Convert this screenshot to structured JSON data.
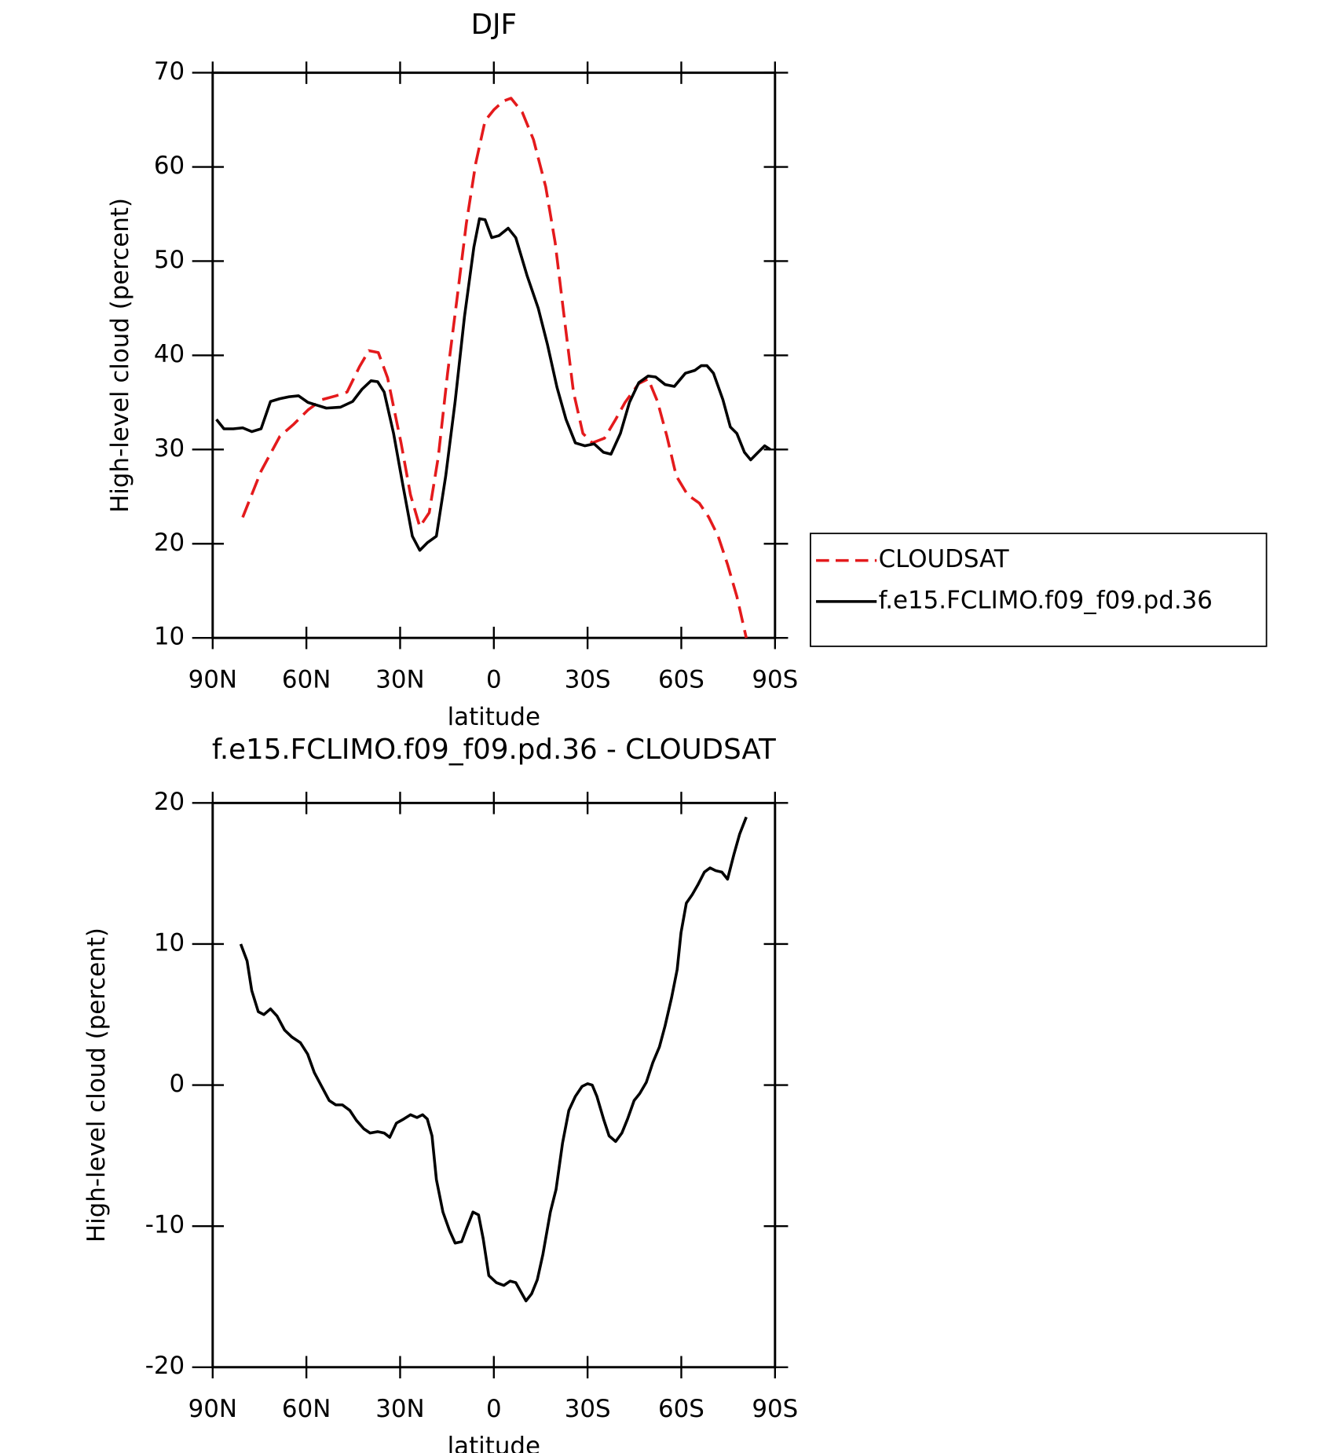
{
  "chart_data": [
    {
      "type": "line",
      "title": "DJF",
      "xlabel": "latitude",
      "ylabel": "High-level cloud (percent)",
      "xlim": [
        90,
        -90
      ],
      "xticks": [
        {
          "value": 90,
          "label": "90N"
        },
        {
          "value": 60,
          "label": "60N"
        },
        {
          "value": 30,
          "label": "30N"
        },
        0,
        {
          "value": -30,
          "label": "30S"
        },
        {
          "value": -60,
          "label": "60S"
        },
        {
          "value": -90,
          "label": "90S"
        }
      ],
      "ylim": [
        10,
        70
      ],
      "yticks": [
        10,
        20,
        30,
        40,
        50,
        60,
        70
      ],
      "legend": "right",
      "series": [
        {
          "name": "CLOUDSAT",
          "color": "#e41a1c",
          "linestyle": "dashed",
          "x": [
            80.4,
            74.5,
            68.5,
            64,
            59.5,
            55,
            50.5,
            47,
            43,
            40,
            37,
            34,
            29.7,
            26.7,
            23.7,
            20.7,
            17.8,
            14.8,
            11.8,
            8.8,
            5.8,
            2.8,
            -0.1,
            -3.1,
            -5.5,
            -9.1,
            -12.7,
            -16.6,
            -19.6,
            -22.5,
            -25.5,
            -28.5,
            -31.5,
            -35.4,
            -39,
            -42,
            -46.4,
            -49.4,
            -52.4,
            -55.4,
            -58.4,
            -62,
            -65.8,
            -68.8,
            -71.8,
            -74.8,
            -77.8,
            -80.8
          ],
          "values": [
            22.8,
            27.7,
            31.4,
            32.7,
            34.2,
            35.3,
            35.7,
            36.1,
            38.8,
            40.5,
            40.3,
            37.6,
            30.7,
            25.2,
            21.8,
            23.3,
            29.2,
            38.1,
            46.0,
            54.0,
            60.4,
            64.9,
            66.1,
            67.0,
            67.3,
            65.8,
            62.9,
            57.9,
            52.0,
            44.1,
            36.1,
            31.7,
            30.7,
            31.2,
            33.2,
            35.0,
            37.0,
            37.5,
            35.1,
            31.4,
            27.2,
            25.2,
            24.3,
            22.8,
            20.8,
            17.8,
            14.4,
            10.0
          ]
        },
        {
          "name": "f.e15.FCLIMO.f09_f09.pd.36",
          "color": "#000000",
          "linestyle": "solid",
          "x": [
            88.8,
            86.4,
            83.4,
            80.4,
            77.5,
            74.5,
            71.5,
            68.5,
            65.5,
            62.5,
            59.5,
            56.6,
            53.6,
            49.1,
            45.2,
            42.2,
            39.3,
            37.2,
            35.1,
            32.1,
            29.1,
            26.1,
            23.7,
            21.3,
            18.4,
            15.4,
            12.4,
            9.4,
            6.4,
            4.6,
            2.8,
            0.7,
            -1.6,
            -4.6,
            -7.0,
            -10.6,
            -14.2,
            -17.2,
            -20.2,
            -23.1,
            -26.1,
            -29.1,
            -32.1,
            -35.1,
            -37.5,
            -40.5,
            -43.4,
            -46.4,
            -49.4,
            -51.8,
            -54.8,
            -57.8,
            -61.3,
            -64.3,
            -66.4,
            -68.2,
            -70.3,
            -73.3,
            -75.7,
            -77.8,
            -80.2,
            -82.2,
            -84.6,
            -86.7,
            -88.5
          ],
          "values": [
            33.2,
            32.2,
            32.2,
            32.3,
            31.9,
            32.2,
            35.1,
            35.4,
            35.6,
            35.7,
            35.0,
            34.7,
            34.4,
            34.5,
            35.1,
            36.4,
            37.3,
            37.2,
            36.1,
            31.7,
            26.2,
            20.8,
            19.3,
            20.1,
            20.8,
            27.2,
            35.1,
            44.1,
            51.5,
            54.5,
            54.4,
            52.5,
            52.7,
            53.5,
            52.5,
            48.5,
            45.0,
            41.1,
            36.6,
            33.2,
            30.7,
            30.4,
            30.6,
            29.7,
            29.5,
            31.7,
            35.0,
            37.1,
            37.8,
            37.7,
            36.9,
            36.7,
            38.1,
            38.4,
            38.9,
            38.9,
            38.1,
            35.3,
            32.4,
            31.7,
            29.7,
            28.9,
            29.7,
            30.4,
            30.0
          ]
        }
      ]
    },
    {
      "type": "line",
      "title": "f.e15.FCLIMO.f09_f09.pd.36 - CLOUDSAT",
      "xlabel": "latitude",
      "ylabel": "High-level cloud (percent)",
      "xlim": [
        90,
        -90
      ],
      "xticks": [
        {
          "value": 90,
          "label": "90N"
        },
        {
          "value": 60,
          "label": "60N"
        },
        {
          "value": 30,
          "label": "30N"
        },
        0,
        {
          "value": -30,
          "label": "30S"
        },
        {
          "value": -60,
          "label": "60S"
        },
        {
          "value": -90,
          "label": "90S"
        }
      ],
      "ylim": [
        -20,
        20
      ],
      "yticks": [
        -20,
        -10,
        0,
        10,
        20
      ],
      "color": "#000000",
      "x": [
        81,
        79,
        77.5,
        75.4,
        73.6,
        71.5,
        69.4,
        67,
        64.6,
        61.9,
        59.6,
        57.5,
        55.1,
        52.7,
        50.6,
        48.5,
        46.1,
        44,
        41.6,
        39.6,
        37.2,
        35.1,
        33.3,
        31.2,
        28.8,
        26.7,
        24.6,
        22.8,
        21.3,
        19.8,
        18.4,
        16.3,
        14.2,
        12.4,
        10.3,
        8.8,
        6.7,
        4.9,
        3.4,
        1.6,
        -0.8,
        -3.2,
        -5.2,
        -7,
        -8.5,
        -10.3,
        -12.1,
        -13.9,
        -15.7,
        -18.1,
        -19.9,
        -22,
        -24,
        -26.1,
        -28.2,
        -30,
        -31.5,
        -33,
        -35.1,
        -36.9,
        -39,
        -41,
        -42.8,
        -44.9,
        -46.7,
        -48.8,
        -50.9,
        -53,
        -54.8,
        -56.9,
        -58.7,
        -59.9,
        -61.6,
        -63.5,
        -65.3,
        -67.4,
        -69.2,
        -71,
        -73,
        -74.8,
        -76.9,
        -78.7,
        -80.8
      ],
      "values": [
        10.0,
        8.8,
        6.7,
        5.2,
        5.0,
        5.4,
        4.9,
        3.9,
        3.4,
        3.0,
        2.2,
        0.9,
        -0.1,
        -1.1,
        -1.4,
        -1.4,
        -1.8,
        -2.5,
        -3.1,
        -3.4,
        -3.3,
        -3.4,
        -3.7,
        -2.7,
        -2.4,
        -2.1,
        -2.3,
        -2.1,
        -2.4,
        -3.6,
        -6.7,
        -9.0,
        -10.3,
        -11.2,
        -11.1,
        -10.2,
        -9.0,
        -9.2,
        -10.9,
        -13.5,
        -14.0,
        -14.2,
        -13.9,
        -14.0,
        -14.6,
        -15.3,
        -14.8,
        -13.8,
        -12.0,
        -9.0,
        -7.4,
        -4.1,
        -1.8,
        -0.8,
        -0.1,
        0.1,
        0.0,
        -0.8,
        -2.4,
        -3.6,
        -4.0,
        -3.4,
        -2.4,
        -1.1,
        -0.6,
        0.2,
        1.6,
        2.7,
        4.2,
        6.2,
        8.2,
        10.8,
        12.9,
        13.5,
        14.2,
        15.1,
        15.4,
        15.2,
        15.1,
        14.6,
        16.4,
        17.8,
        19.0
      ]
    }
  ]
}
